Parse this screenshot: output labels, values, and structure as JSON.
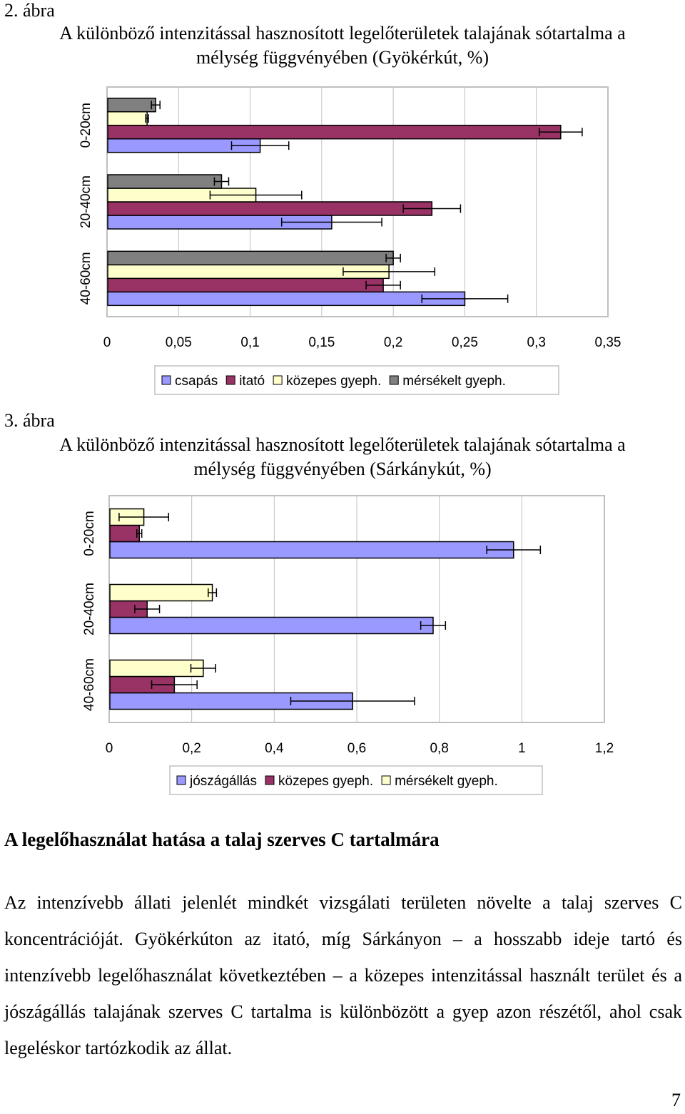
{
  "figure2": {
    "number": "2. ábra",
    "title_line1": "A különböző intenzitással hasznosított legelőterületek talajának sótartalma a",
    "title_line2": "mélység függvényében (Gyökérkút, %)"
  },
  "figure3": {
    "number": "3. ábra",
    "title_line1": "A különböző intenzitással hasznosított legelőterületek talajának sótartalma a",
    "title_line2": "mélység függvényében (Sárkánykút, %)"
  },
  "chart_data": [
    {
      "type": "bar",
      "orientation": "horizontal",
      "categories": [
        "40-60cm",
        "20-40cm",
        "0-20cm"
      ],
      "series": [
        {
          "name": "csapás",
          "color": "#9999ff",
          "values": [
            0.25,
            0.157,
            0.107
          ],
          "errors": [
            0.03,
            0.035,
            0.02
          ]
        },
        {
          "name": "itató",
          "color": "#993366",
          "values": [
            0.193,
            0.227,
            0.317
          ],
          "errors": [
            0.012,
            0.02,
            0.015
          ]
        },
        {
          "name": "közepes gyeph.",
          "color": "#ffffcc",
          "values": [
            0.197,
            0.104,
            0.028
          ],
          "errors": [
            0.032,
            0.032,
            0.001
          ]
        },
        {
          "name": "mérsékelt gyeph.",
          "color": "#808080",
          "values": [
            0.2,
            0.08,
            0.034
          ],
          "errors": [
            0.005,
            0.005,
            0.003
          ]
        }
      ],
      "xlim": [
        0,
        0.35
      ],
      "xticks": [
        "0",
        "0,05",
        "0,1",
        "0,15",
        "0,2",
        "0,25",
        "0,3",
        "0,35"
      ],
      "grid": true,
      "legend_position": "bottom"
    },
    {
      "type": "bar",
      "orientation": "horizontal",
      "categories": [
        "40-60cm",
        "20-40cm",
        "0-20cm"
      ],
      "series": [
        {
          "name": "jószágállás",
          "color": "#9999ff",
          "values": [
            0.59,
            0.785,
            0.98
          ],
          "errors": [
            0.15,
            0.03,
            0.065
          ]
        },
        {
          "name": "közepes gyeph.",
          "color": "#993366",
          "values": [
            0.158,
            0.092,
            0.073
          ],
          "errors": [
            0.055,
            0.03,
            0.006
          ]
        },
        {
          "name": "mérsékelt gyeph.",
          "color": "#ffffcc",
          "values": [
            0.228,
            0.25,
            0.084
          ],
          "errors": [
            0.03,
            0.01,
            0.06
          ]
        }
      ],
      "xlim": [
        0,
        1.2
      ],
      "xticks": [
        "0",
        "0,2",
        "0,4",
        "0,6",
        "0,8",
        "1",
        "1,2"
      ],
      "grid": true,
      "legend_position": "bottom"
    }
  ],
  "section": {
    "heading": "A legelőhasználat hatása a talaj szerves C tartalmára",
    "paragraph": "Az intenzívebb állati jelenlét mindkét vizsgálati területen növelte a talaj szerves C koncentrációját. Gyökérkúton az itató, míg Sárkányon – a hosszabb ideje tartó és intenzívebb legelőhasználat következtében – a közepes intenzitással használt terület és a jószágállás talajának szerves C tartalma is különbözött a gyep azon részétől, ahol csak legeléskor tartózkodik az állat."
  },
  "page_number": "7"
}
